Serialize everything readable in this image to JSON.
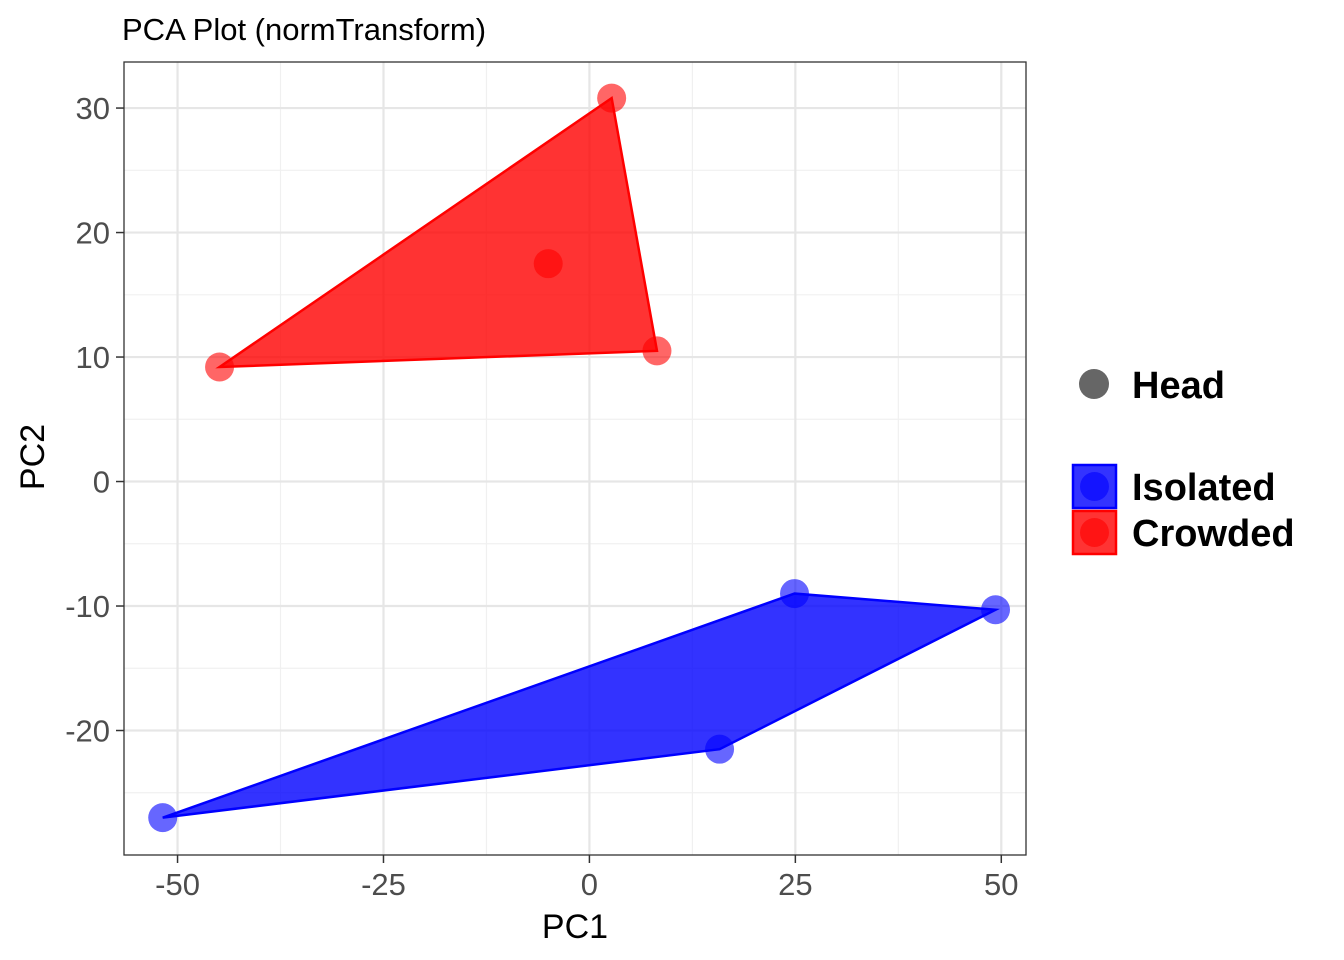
{
  "chart_data": {
    "type": "scatter",
    "title": "PCA Plot (normTransform)",
    "xlabel": "PC1",
    "ylabel": "PC2",
    "xlim": [
      -56.5,
      53
    ],
    "ylim": [
      -30,
      33.7
    ],
    "x_ticks": [
      -50,
      -25,
      0,
      25,
      50
    ],
    "x_tick_labels": [
      "-50",
      "-25",
      "0",
      "25",
      "50"
    ],
    "y_ticks": [
      -20,
      -10,
      0,
      10,
      20,
      30
    ],
    "y_tick_labels": [
      "-20",
      "-10",
      "0",
      "10",
      "20",
      "30"
    ],
    "grid": true,
    "hulls": true,
    "series": [
      {
        "name": "Isolated",
        "color": "#0000ff",
        "points": [
          {
            "x": -51.8,
            "y": -27.0
          },
          {
            "x": 15.8,
            "y": -21.5
          },
          {
            "x": 24.9,
            "y": -9.0
          },
          {
            "x": 49.3,
            "y": -10.3
          }
        ]
      },
      {
        "name": "Crowded",
        "color": "#ff0000",
        "points": [
          {
            "x": -44.9,
            "y": 9.2
          },
          {
            "x": -5.0,
            "y": 17.5
          },
          {
            "x": 2.7,
            "y": 30.8
          },
          {
            "x": 8.2,
            "y": 10.5
          }
        ]
      }
    ],
    "legend": {
      "placement": "right",
      "shape_title": "Head",
      "shape_color": "#666666",
      "entries": [
        {
          "label": "Isolated",
          "color": "#0000ff"
        },
        {
          "label": "Crowded",
          "color": "#ff0000"
        }
      ]
    }
  }
}
